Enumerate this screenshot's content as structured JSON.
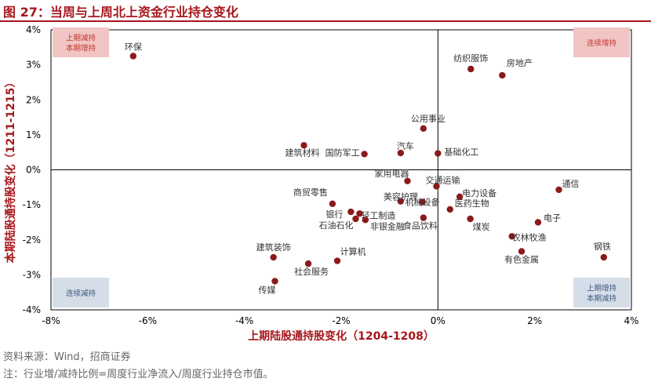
{
  "header": {
    "title": "图 27：当周与上周北上资金行业持仓变化"
  },
  "footer": {
    "source": "资料来源：Wind，招商证券",
    "note": "注：行业增/减持比例=周度行业净流入/周度行业持仓市值。"
  },
  "chart_data": {
    "type": "scatter",
    "title": "",
    "xlabel": "上期陆股通持股变化（1204-1208）",
    "ylabel": "本期陆股通持股变化（1211-1215）",
    "xlim": [
      -0.08,
      0.04
    ],
    "ylim": [
      -0.04,
      0.04
    ],
    "x_ticks": [
      "-8%",
      "-6%",
      "-4%",
      "-2%",
      "0%",
      "2%",
      "4%"
    ],
    "y_ticks": [
      "4%",
      "3%",
      "2%",
      "1%",
      "0%",
      "-1%",
      "-2%",
      "-3%",
      "-4%"
    ],
    "grid": false,
    "marker_color": "#8b1a1a",
    "quadrant_labels": {
      "top_left": [
        "上期减持",
        "本期增持"
      ],
      "top_right": [
        "连续增持"
      ],
      "bottom_left": [
        "连续减持"
      ],
      "bottom_right": [
        "上期增持",
        "本期减持"
      ]
    },
    "quadrant_colors": {
      "increase": "#f2c4c4",
      "increase_text": "#c0392b",
      "decrease": "#d5dde8",
      "decrease_text": "#3d5a80"
    },
    "points": [
      {
        "label": "环保",
        "x": -0.063,
        "y": 0.0325
      },
      {
        "label": "纺织服饰",
        "x": 0.0068,
        "y": 0.0288
      },
      {
        "label": "房地产",
        "x": 0.0133,
        "y": 0.027
      },
      {
        "label": "公用事业",
        "x": -0.003,
        "y": 0.0118
      },
      {
        "label": "建筑材料",
        "x": -0.0277,
        "y": 0.007
      },
      {
        "label": "国防军工",
        "x": -0.0152,
        "y": 0.0045
      },
      {
        "label": "汽车",
        "x": -0.0077,
        "y": 0.0048
      },
      {
        "label": "基础化工",
        "x": 0.0,
        "y": 0.0047
      },
      {
        "label": "家用电器",
        "x": -0.0063,
        "y": -0.0032
      },
      {
        "label": "交通运输",
        "x": -0.0003,
        "y": -0.0047
      },
      {
        "label": "通信",
        "x": 0.025,
        "y": -0.0057
      },
      {
        "label": "电力设备",
        "x": 0.0045,
        "y": -0.0077
      },
      {
        "label": "商贸零售",
        "x": -0.0218,
        "y": -0.0097
      },
      {
        "label": "美容护理",
        "x": -0.0077,
        "y": -0.009
      },
      {
        "label": "机械设备",
        "x": -0.0032,
        "y": -0.0092
      },
      {
        "label": "医药生物",
        "x": 0.0025,
        "y": -0.0113
      },
      {
        "label": "银行",
        "x": -0.018,
        "y": -0.012
      },
      {
        "label": "轻工制造",
        "x": -0.0162,
        "y": -0.0125
      },
      {
        "label": "石油石化",
        "x": -0.017,
        "y": -0.014
      },
      {
        "label": "非银金融",
        "x": -0.015,
        "y": -0.0143
      },
      {
        "label": "食品饮料",
        "x": -0.003,
        "y": -0.0137
      },
      {
        "label": "煤炭",
        "x": 0.0067,
        "y": -0.014
      },
      {
        "label": "电子",
        "x": 0.0207,
        "y": -0.015
      },
      {
        "label": "农林牧渔",
        "x": 0.0153,
        "y": -0.019
      },
      {
        "label": "有色金属",
        "x": 0.0173,
        "y": -0.0233
      },
      {
        "label": "钢铁",
        "x": 0.0343,
        "y": -0.025
      },
      {
        "label": "建筑装饰",
        "x": -0.034,
        "y": -0.025
      },
      {
        "label": "计算机",
        "x": -0.0208,
        "y": -0.026
      },
      {
        "label": "社会服务",
        "x": -0.0268,
        "y": -0.0268
      },
      {
        "label": "传媒",
        "x": -0.0337,
        "y": -0.0318
      }
    ]
  }
}
